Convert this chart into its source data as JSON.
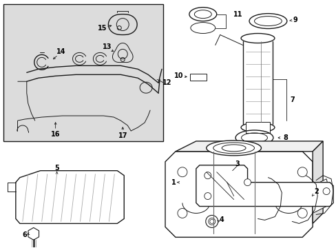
{
  "bg_color": "#ffffff",
  "inset_bg": "#dcdcdc",
  "line_color": "#1a1a1a",
  "text_color": "#000000",
  "fig_width": 4.89,
  "fig_height": 3.6,
  "dpi": 100
}
